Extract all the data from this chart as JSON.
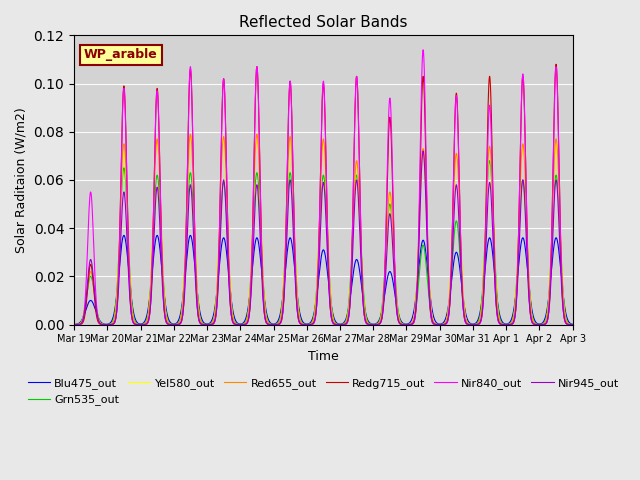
{
  "title": "Reflected Solar Bands",
  "xlabel": "Time",
  "ylabel": "Solar Raditaion (W/m2)",
  "ylim": [
    0,
    0.12
  ],
  "background_color": "#e8e8e8",
  "plot_bg_color": "#d3d3d3",
  "annotation_text": "WP_arable",
  "annotation_color": "#8B0000",
  "annotation_bg": "#ffff99",
  "annotation_border": "#8B0000",
  "series": [
    {
      "label": "Blu475_out",
      "color": "#0000ff"
    },
    {
      "label": "Grn535_out",
      "color": "#00cc00"
    },
    {
      "label": "Yel580_out",
      "color": "#ffff00"
    },
    {
      "label": "Red655_out",
      "color": "#ff8800"
    },
    {
      "label": "Redg715_out",
      "color": "#cc0000"
    },
    {
      "label": "Nir840_out",
      "color": "#ff00ff"
    },
    {
      "label": "Nir945_out",
      "color": "#9900cc"
    }
  ],
  "x_tick_labels": [
    "Mar 19",
    "Mar 20",
    "Mar 21",
    "Mar 22",
    "Mar 23",
    "Mar 24",
    "Mar 25",
    "Mar 26",
    "Mar 27",
    "Mar 28",
    "Mar 29",
    "Mar 30",
    "Mar 31",
    "Apr 1",
    "Apr 2",
    "Apr 3"
  ],
  "num_days": 15,
  "points_per_day": 480,
  "day_peaks_blu": [
    0.01,
    0.037,
    0.037,
    0.037,
    0.036,
    0.036,
    0.036,
    0.031,
    0.027,
    0.022,
    0.035,
    0.03,
    0.036,
    0.036,
    0.036
  ],
  "day_peaks_grn": [
    0.02,
    0.065,
    0.062,
    0.063,
    0.059,
    0.063,
    0.063,
    0.062,
    0.062,
    0.05,
    0.033,
    0.043,
    0.068,
    0.06,
    0.062
  ],
  "day_peaks_yel": [
    0.022,
    0.072,
    0.076,
    0.078,
    0.077,
    0.077,
    0.077,
    0.075,
    0.066,
    0.054,
    0.073,
    0.071,
    0.073,
    0.074,
    0.075
  ],
  "day_peaks_red": [
    0.022,
    0.075,
    0.077,
    0.079,
    0.078,
    0.079,
    0.078,
    0.077,
    0.068,
    0.055,
    0.073,
    0.071,
    0.074,
    0.075,
    0.077
  ],
  "day_peaks_redg": [
    0.025,
    0.099,
    0.098,
    0.106,
    0.102,
    0.107,
    0.101,
    0.1,
    0.103,
    0.086,
    0.103,
    0.096,
    0.103,
    0.103,
    0.108
  ],
  "day_peaks_nir840": [
    0.055,
    0.098,
    0.097,
    0.107,
    0.102,
    0.107,
    0.101,
    0.101,
    0.103,
    0.094,
    0.114,
    0.095,
    0.091,
    0.104,
    0.107
  ],
  "day_peaks_nir945": [
    0.027,
    0.055,
    0.057,
    0.058,
    0.06,
    0.058,
    0.06,
    0.059,
    0.06,
    0.046,
    0.072,
    0.058,
    0.059,
    0.06,
    0.06
  ]
}
